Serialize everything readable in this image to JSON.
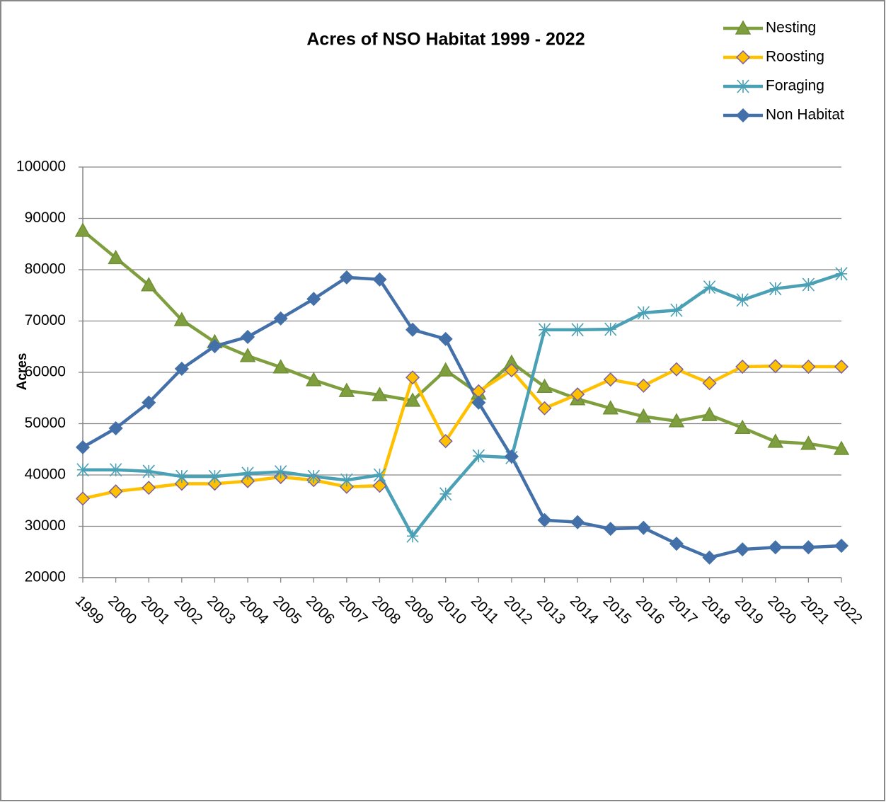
{
  "chart_data": {
    "type": "line",
    "title": "Acres of NSO Habitat 1999 - 2022",
    "y_label": "Acres",
    "categories": [
      "1999",
      "2000",
      "2001",
      "2002",
      "2003",
      "2004",
      "2005",
      "2006",
      "2007",
      "2008",
      "2009",
      "2010",
      "2011",
      "2012",
      "2013",
      "2014",
      "2015",
      "2016",
      "2017",
      "2018",
      "2019",
      "2020",
      "2021",
      "2022"
    ],
    "ylim": [
      20000,
      100000
    ],
    "yticks": [
      20000,
      30000,
      40000,
      50000,
      60000,
      70000,
      80000,
      90000,
      100000
    ],
    "grid": true,
    "legend": "top-right",
    "series": [
      {
        "name": "Nesting",
        "color": "#7f9f3f",
        "marker": "triangle",
        "marker_fill": "#7f9f3f",
        "marker_stroke": "#6f8f35",
        "values": [
          87600,
          82300,
          77000,
          70200,
          65900,
          63200,
          61000,
          58500,
          56400,
          55600,
          54500,
          60400,
          55900,
          61900,
          57200,
          54800,
          53000,
          51400,
          50500,
          51700,
          49200,
          46500,
          46100,
          45100
        ]
      },
      {
        "name": "Roosting",
        "color": "#ffc000",
        "marker": "diamond",
        "marker_fill": "#ffc000",
        "marker_stroke": "#7a5fa0",
        "values": [
          35400,
          36800,
          37500,
          38300,
          38300,
          38800,
          39600,
          39000,
          37700,
          37900,
          59000,
          46600,
          56300,
          60400,
          53000,
          55700,
          58600,
          57400,
          60600,
          57900,
          61100,
          61200,
          61100,
          61100
        ]
      },
      {
        "name": "Foraging",
        "color": "#4aa0b5",
        "marker": "asterisk",
        "marker_fill": "none",
        "marker_stroke": "#4aa0b5",
        "values": [
          41000,
          41000,
          40700,
          39700,
          39700,
          40300,
          40600,
          39700,
          39000,
          40000,
          28100,
          36300,
          43700,
          43400,
          68300,
          68300,
          68400,
          71600,
          72100,
          76600,
          74100,
          76300,
          77100,
          79200
        ]
      },
      {
        "name": "Non Habitat",
        "color": "#4470aa",
        "marker": "diamond",
        "marker_fill": "#4470aa",
        "marker_stroke": "#4470aa",
        "values": [
          45400,
          49100,
          54100,
          60700,
          65100,
          66900,
          70500,
          74300,
          78500,
          78100,
          68300,
          66500,
          54100,
          43600,
          31200,
          30800,
          29500,
          29700,
          26600,
          23900,
          25500,
          25900,
          25900,
          26200
        ]
      }
    ]
  }
}
